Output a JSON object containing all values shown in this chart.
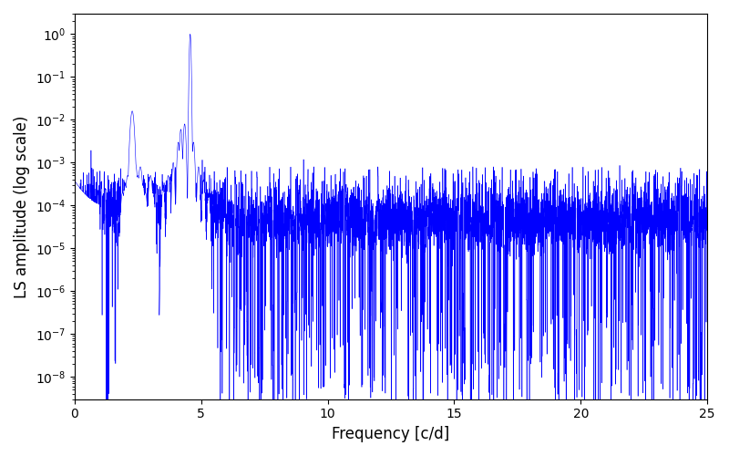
{
  "xlabel": "Frequency [c/d]",
  "ylabel": "LS amplitude (log scale)",
  "line_color": "#0000ff",
  "background_color": "#ffffff",
  "xlim": [
    0,
    25
  ],
  "ylim_bottom": 3e-09,
  "ylim_top": 3.0,
  "freq_max": 25,
  "n_points": 8000,
  "main_peak_freq": 4.57,
  "main_peak_amp": 1.0,
  "secondary_peak_freq": 2.28,
  "secondary_peak_amp": 0.016,
  "seed": 42
}
